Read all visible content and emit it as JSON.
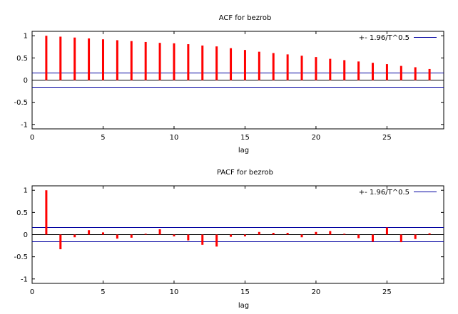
{
  "chart_data": [
    {
      "type": "bar",
      "title": "ACF for bezrob",
      "xlabel": "lag",
      "ylabel": "",
      "xlim": [
        0,
        29
      ],
      "ylim": [
        -1.1,
        1.1
      ],
      "x_ticks": [
        0,
        5,
        10,
        15,
        20,
        25
      ],
      "y_ticks": [
        1,
        0.5,
        0,
        -0.5,
        -1
      ],
      "y_tick_labels": [
        "1",
        "0.5",
        "0",
        "-0.5",
        "-1"
      ],
      "legend": {
        "label": "+- 1.96/T^0.5",
        "placement": "top-right"
      },
      "confidence_band": 0.16,
      "x": [
        1,
        2,
        3,
        4,
        5,
        6,
        7,
        8,
        9,
        10,
        11,
        12,
        13,
        14,
        15,
        16,
        17,
        18,
        19,
        20,
        21,
        22,
        23,
        24,
        25,
        26,
        27,
        28
      ],
      "values": [
        1.0,
        0.98,
        0.96,
        0.94,
        0.92,
        0.9,
        0.88,
        0.86,
        0.84,
        0.83,
        0.81,
        0.78,
        0.76,
        0.72,
        0.68,
        0.64,
        0.61,
        0.58,
        0.55,
        0.52,
        0.48,
        0.45,
        0.42,
        0.39,
        0.36,
        0.32,
        0.29,
        0.25
      ],
      "colors": {
        "bars": "#ff0000",
        "band": "#0000a0",
        "axes": "#000000"
      }
    },
    {
      "type": "bar",
      "title": "PACF for bezrob",
      "xlabel": "lag",
      "ylabel": "",
      "xlim": [
        0,
        29
      ],
      "ylim": [
        -1.1,
        1.1
      ],
      "x_ticks": [
        0,
        5,
        10,
        15,
        20,
        25
      ],
      "y_ticks": [
        1,
        0.5,
        0,
        -0.5,
        -1
      ],
      "y_tick_labels": [
        "1",
        "0.5",
        "0",
        "-0.5",
        "-1"
      ],
      "legend": {
        "label": "+- 1.96/T^0.5",
        "placement": "top-right"
      },
      "confidence_band": 0.16,
      "x": [
        1,
        2,
        3,
        4,
        5,
        6,
        7,
        8,
        9,
        10,
        11,
        12,
        13,
        14,
        15,
        16,
        17,
        18,
        19,
        20,
        21,
        22,
        23,
        24,
        25,
        26,
        27,
        28
      ],
      "values": [
        1.0,
        -0.33,
        -0.06,
        0.1,
        0.05,
        -0.09,
        -0.07,
        0.02,
        0.12,
        -0.04,
        -0.13,
        -0.23,
        -0.27,
        -0.05,
        -0.04,
        0.06,
        0.04,
        0.04,
        -0.06,
        0.06,
        0.08,
        0.02,
        -0.08,
        -0.16,
        0.16,
        -0.17,
        -0.1,
        0.03
      ],
      "colors": {
        "bars": "#ff0000",
        "band": "#0000a0",
        "axes": "#000000"
      }
    }
  ]
}
